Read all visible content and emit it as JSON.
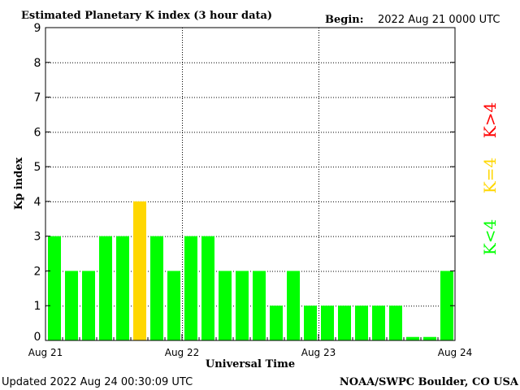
{
  "chart_data": {
    "type": "bar",
    "title": "Estimated Planetary K index (3 hour data)",
    "begin_label": "Begin:",
    "begin_value": "2022 Aug 21 0000 UTC",
    "ylabel": "Kp index",
    "xlabel": "Universal Time",
    "ylim": [
      0,
      9
    ],
    "yticks": [
      "0",
      "1",
      "2",
      "3",
      "4",
      "5",
      "6",
      "7",
      "8",
      "9"
    ],
    "xtick_labels": [
      "Aug 21",
      "Aug 22",
      "Aug 23",
      "Aug 24"
    ],
    "grid": true,
    "values": [
      3,
      2,
      2,
      3,
      3,
      4,
      3,
      2,
      3,
      3,
      2,
      2,
      2,
      1,
      2,
      1,
      1,
      1,
      1,
      1,
      1,
      0,
      0,
      2
    ],
    "colors": {
      "below4": "#00ff00",
      "equal4": "#ffd700",
      "above4": "#ff0000"
    },
    "legend": [
      {
        "label": "K<4",
        "color": "#00ff00"
      },
      {
        "label": "K=4",
        "color": "#ffd700"
      },
      {
        "label": "K>4",
        "color": "#ff0000"
      }
    ],
    "updated": "Updated 2022 Aug 24 00:30:09 UTC",
    "credit": "NOAA/SWPC Boulder, CO USA"
  }
}
